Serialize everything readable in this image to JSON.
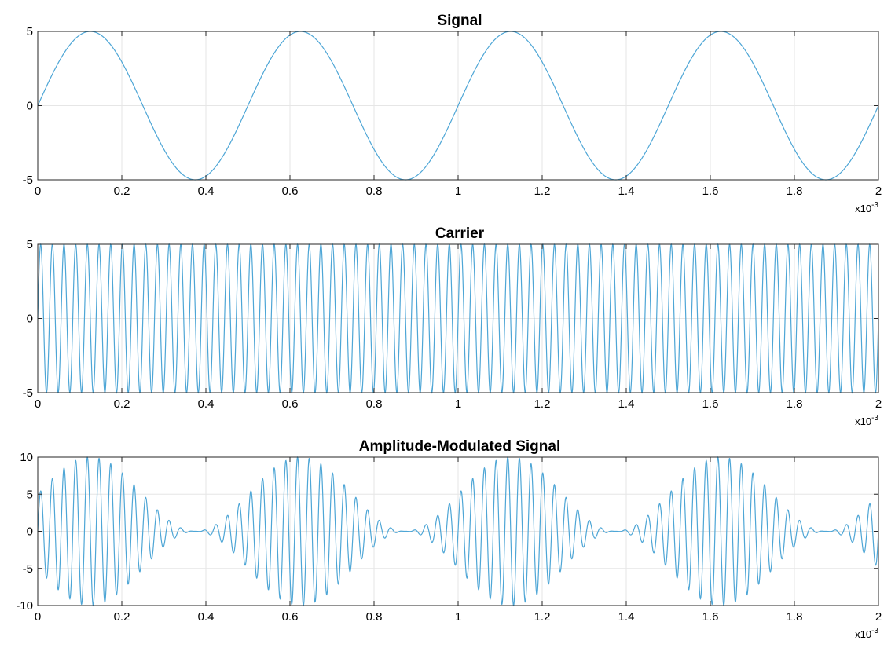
{
  "chart_data": [
    {
      "type": "line",
      "title": "Signal",
      "xlim": [
        0,
        0.002
      ],
      "ylim": [
        -5,
        5
      ],
      "xticks": [
        0,
        0.0002,
        0.0004,
        0.0006,
        0.0008,
        0.001,
        0.0012,
        0.0014,
        0.0016,
        0.0018,
        0.002
      ],
      "xtick_labels": [
        "0",
        "0.2",
        "0.4",
        "0.6",
        "0.8",
        "1",
        "1.2",
        "1.4",
        "1.6",
        "1.8",
        "2"
      ],
      "yticks": [
        -5,
        0,
        5
      ],
      "ytick_labels": [
        "-5",
        "0",
        "5"
      ],
      "x_exponent_label": "x10",
      "x_exponent_power": "-3",
      "grid": true,
      "line_color": "#4ea6d6",
      "series": [
        {
          "name": "",
          "function": "sine",
          "amplitude": 5,
          "frequency_hz": 2000,
          "phase": 0
        }
      ]
    },
    {
      "type": "line",
      "title": "Carrier",
      "xlim": [
        0,
        0.002
      ],
      "ylim": [
        -5,
        5
      ],
      "xticks": [
        0,
        0.0002,
        0.0004,
        0.0006,
        0.0008,
        0.001,
        0.0012,
        0.0014,
        0.0016,
        0.0018,
        0.002
      ],
      "xtick_labels": [
        "0",
        "0.2",
        "0.4",
        "0.6",
        "0.8",
        "1",
        "1.2",
        "1.4",
        "1.6",
        "1.8",
        "2"
      ],
      "yticks": [
        -5,
        0,
        5
      ],
      "ytick_labels": [
        "-5",
        "0",
        "5"
      ],
      "x_exponent_label": "x10",
      "x_exponent_power": "-3",
      "grid": true,
      "line_color": "#4ea6d6",
      "series": [
        {
          "name": "",
          "function": "sine",
          "amplitude": 5,
          "frequency_hz": 36000,
          "phase": 0
        }
      ]
    },
    {
      "type": "line",
      "title": "Amplitude-Modulated Signal",
      "xlim": [
        0,
        0.002
      ],
      "ylim": [
        -10,
        10
      ],
      "xticks": [
        0,
        0.0002,
        0.0004,
        0.0006,
        0.0008,
        0.001,
        0.0012,
        0.0014,
        0.0016,
        0.0018,
        0.002
      ],
      "xtick_labels": [
        "0",
        "0.2",
        "0.4",
        "0.6",
        "0.8",
        "1",
        "1.2",
        "1.4",
        "1.6",
        "1.8",
        "2"
      ],
      "yticks": [
        -10,
        -5,
        0,
        5,
        10
      ],
      "ytick_labels": [
        "-10",
        "-5",
        "0",
        "5",
        "10"
      ],
      "x_exponent_label": "x10",
      "x_exponent_power": "-3",
      "grid": true,
      "line_color": "#4ea6d6",
      "series": [
        {
          "name": "",
          "function": "am",
          "carrier_amplitude": 5,
          "carrier_frequency_hz": 36000,
          "message_amplitude": 5,
          "message_frequency_hz": 2000,
          "modulation_index": 1
        }
      ]
    }
  ]
}
